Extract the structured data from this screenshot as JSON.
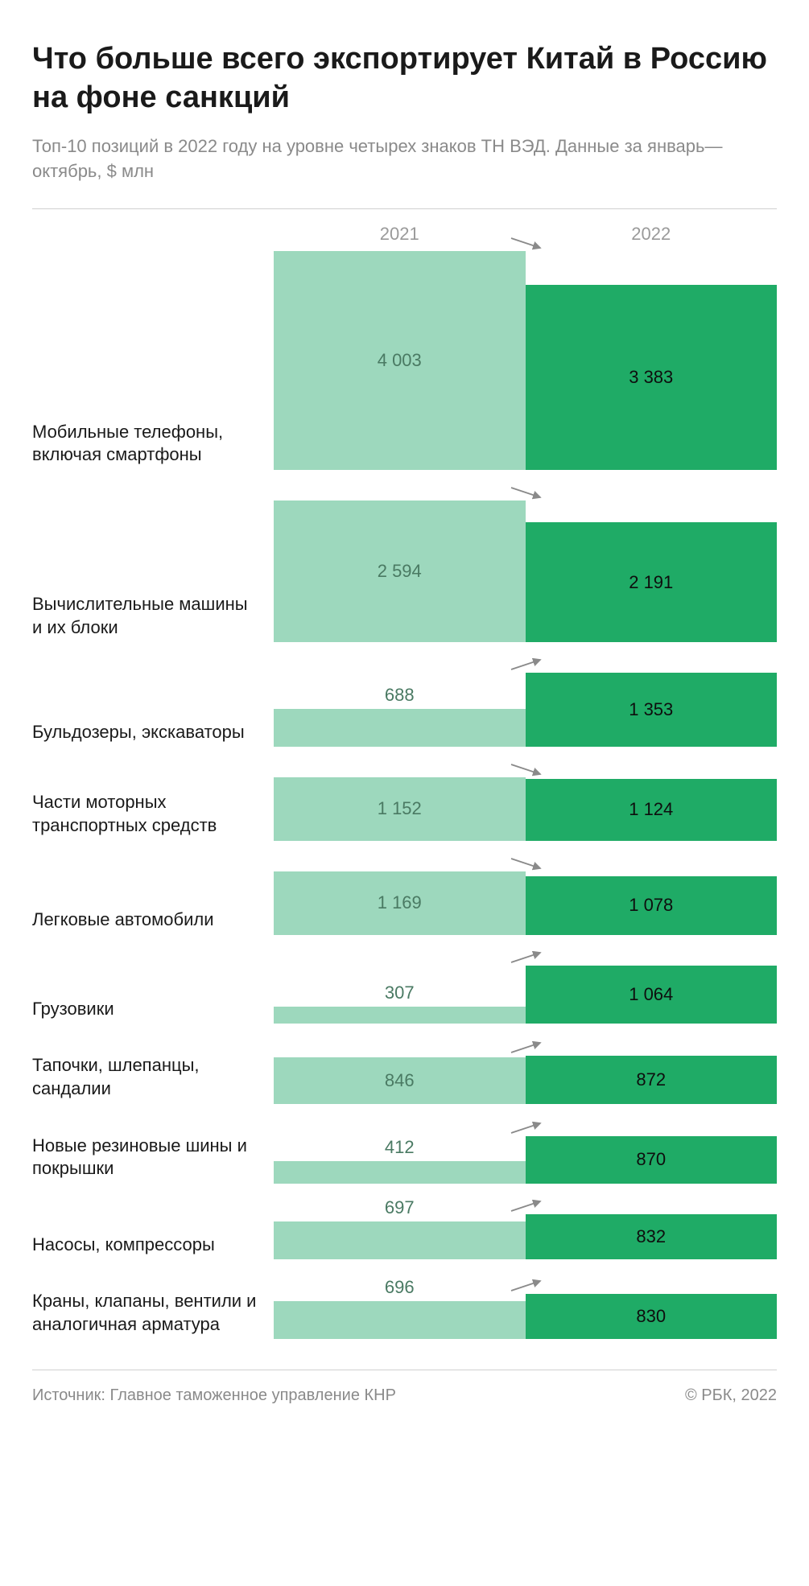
{
  "title": "Что больше всего экспортирует Китай в Россию на фоне санкций",
  "subtitle": "Топ-10 позиций в 2022 году на уровне четырех знаков ТН ВЭД. Данные за январь—октябрь, $ млн",
  "year_left": "2021",
  "year_right": "2022",
  "source_label": "Источник: Главное таможенное управление КНР",
  "credit": "© РБК, 2022",
  "chart": {
    "type": "diverging-bar",
    "color_2021": "#9dd8bd",
    "color_2022": "#1fab66",
    "text_color_2021": "#4a7a63",
    "text_color_2022": "#0e0e0e",
    "arrow_color": "#8a8a8a",
    "max_value": 4003,
    "label_fontsize": 22,
    "value_fontsize": 22,
    "height_scale": 0.068,
    "min_bar_height": 28,
    "label_inside_threshold": 50,
    "rows": [
      {
        "label": "Мобильные телефоны, включая смартфоны",
        "v2021": 4003,
        "v2022": 3383,
        "d2021": "4 003",
        "d2022": "3 383",
        "trend": "down"
      },
      {
        "label": "Вычислительные машины и их блоки",
        "v2021": 2594,
        "v2022": 2191,
        "d2021": "2 594",
        "d2022": "2 191",
        "trend": "down"
      },
      {
        "label": "Бульдозеры, экскаваторы",
        "v2021": 688,
        "v2022": 1353,
        "d2021": "688",
        "d2022": "1 353",
        "trend": "up"
      },
      {
        "label": "Части моторных транспортных средств",
        "v2021": 1152,
        "v2022": 1124,
        "d2021": "1 152",
        "d2022": "1 124",
        "trend": "down"
      },
      {
        "label": "Легковые автомобили",
        "v2021": 1169,
        "v2022": 1078,
        "d2021": "1 169",
        "d2022": "1 078",
        "trend": "down"
      },
      {
        "label": "Грузовики",
        "v2021": 307,
        "v2022": 1064,
        "d2021": "307",
        "d2022": "1 064",
        "trend": "up"
      },
      {
        "label": "Тапочки, шлепанцы, сандалии",
        "v2021": 846,
        "v2022": 872,
        "d2021": "846",
        "d2022": "872",
        "trend": "up"
      },
      {
        "label": "Новые резиновые шины и покрышки",
        "v2021": 412,
        "v2022": 870,
        "d2021": "412",
        "d2022": "870",
        "trend": "up"
      },
      {
        "label": "Насосы, компрессоры",
        "v2021": 697,
        "v2022": 832,
        "d2021": "697",
        "d2022": "832",
        "trend": "up"
      },
      {
        "label": "Краны, клапаны, вентили и аналогичная арматура",
        "v2021": 696,
        "v2022": 830,
        "d2021": "696",
        "d2022": "830",
        "trend": "up"
      }
    ]
  }
}
